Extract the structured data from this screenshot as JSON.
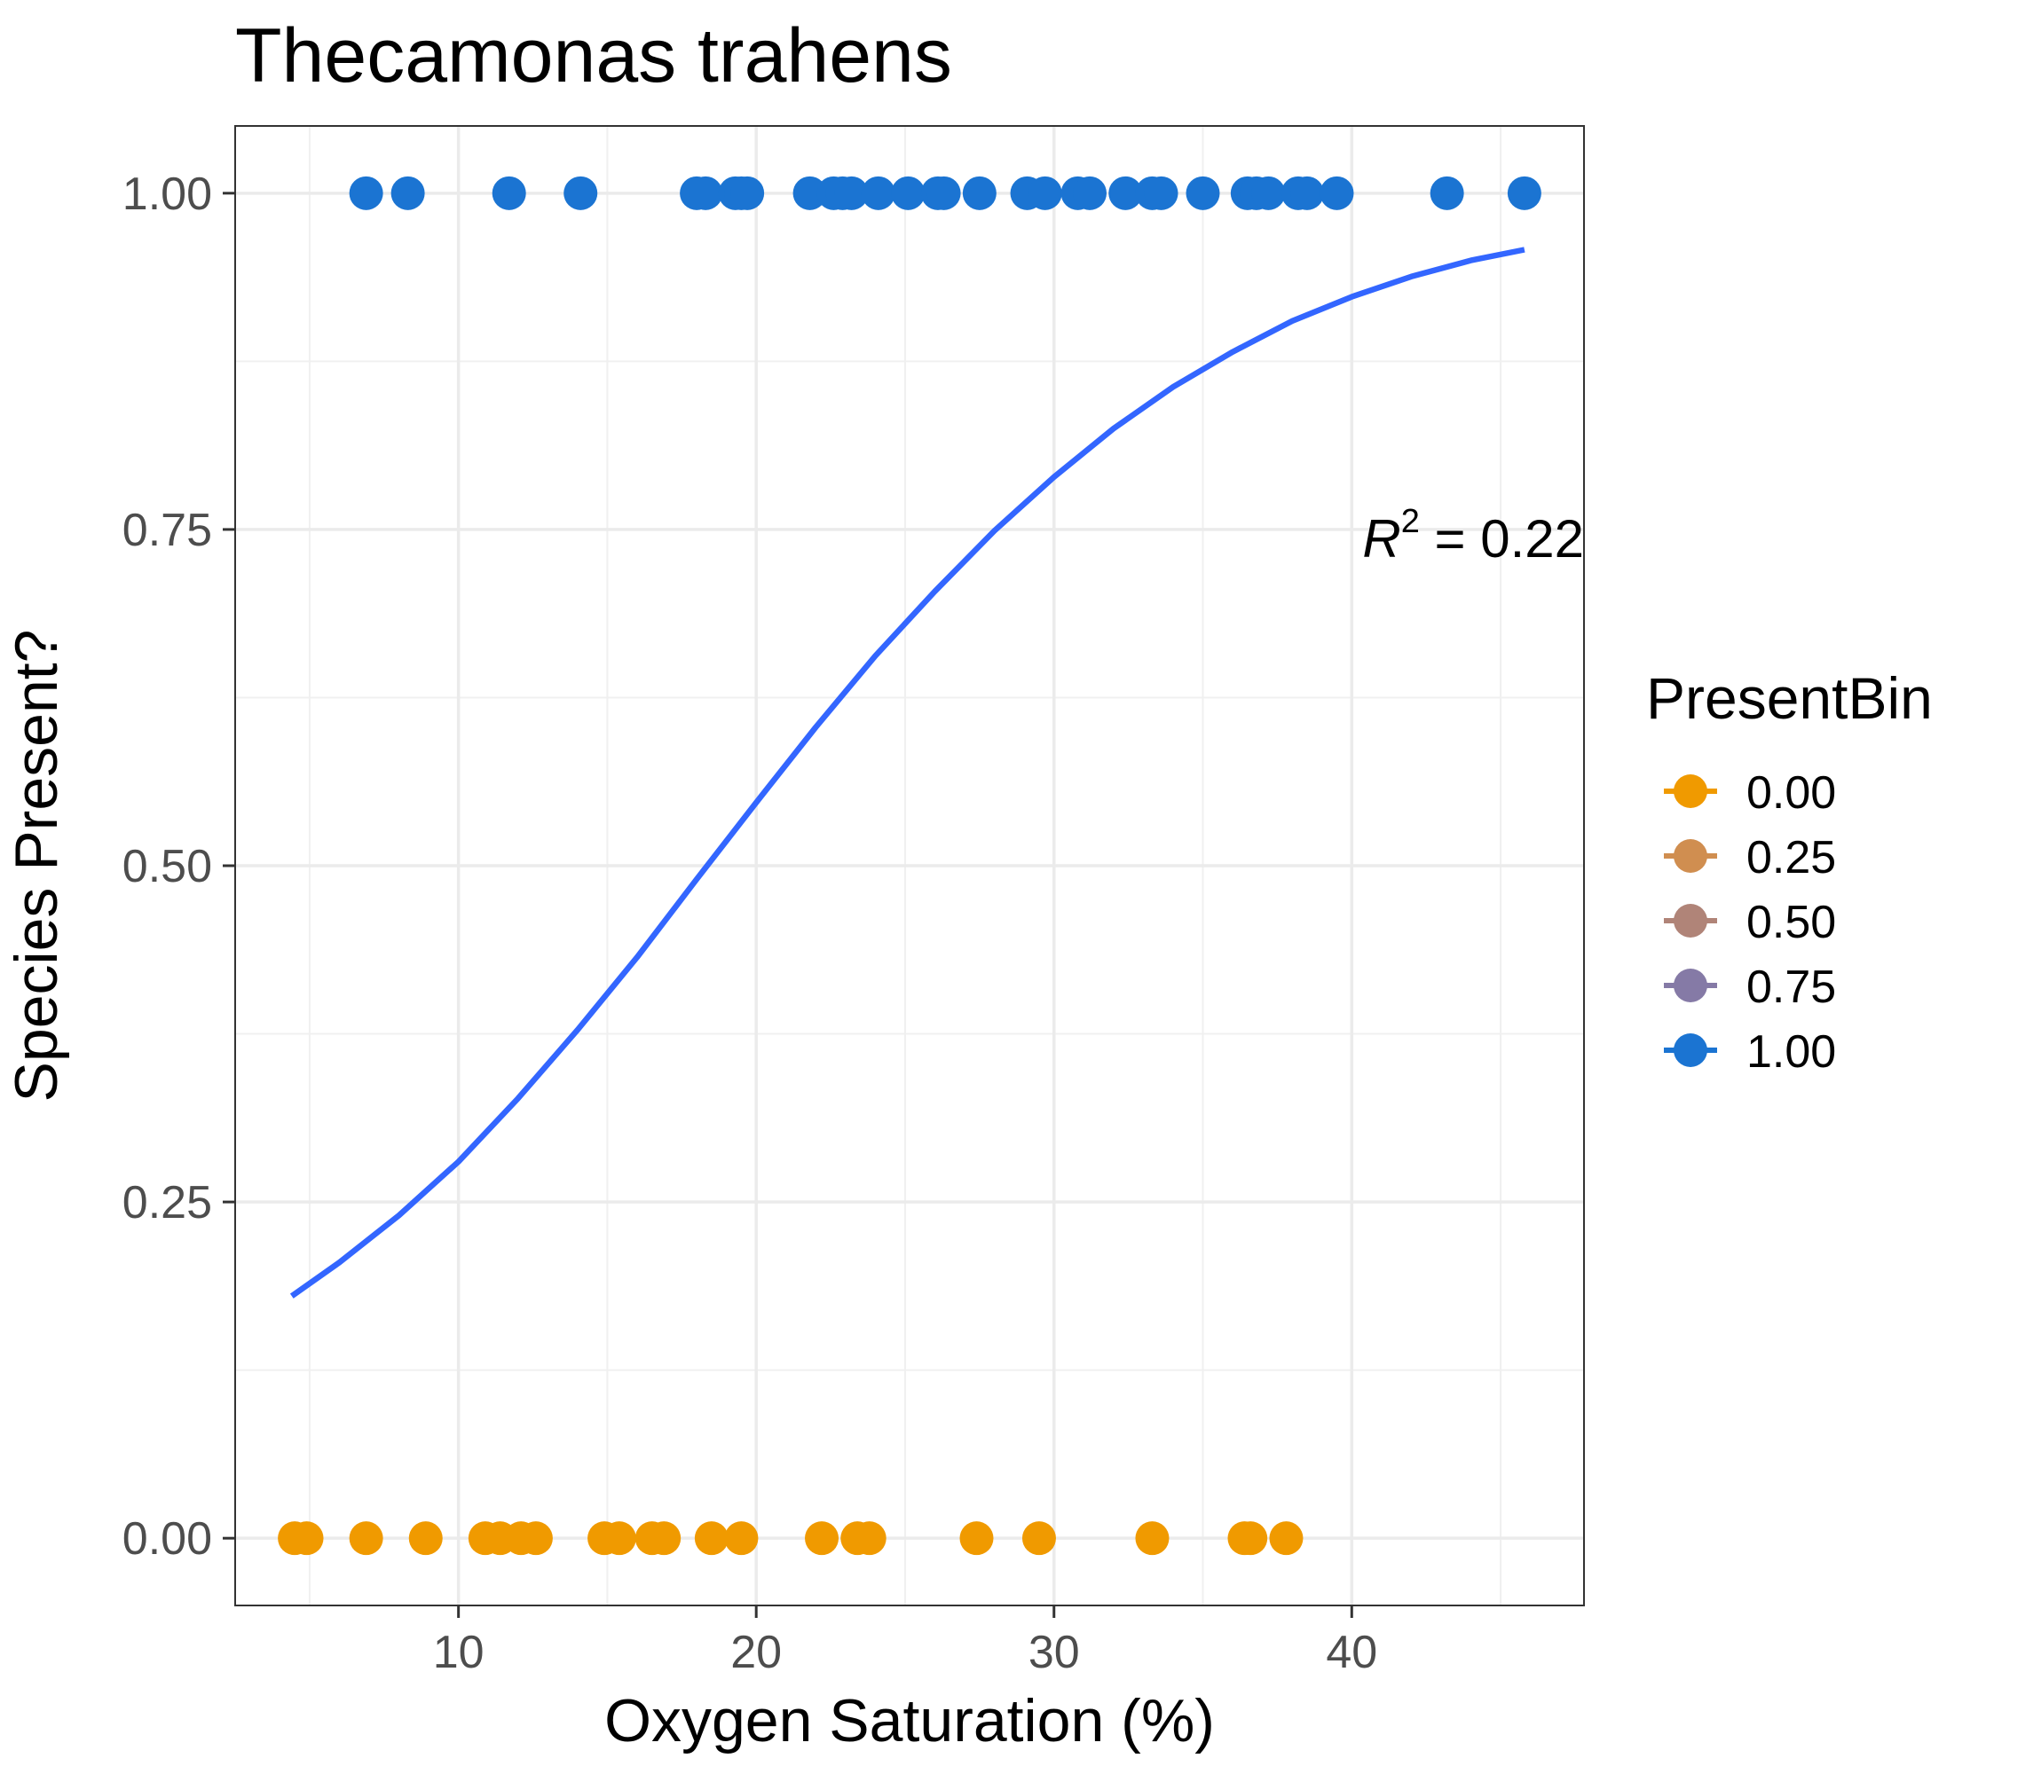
{
  "chart_data": {
    "type": "scatter",
    "title": "Thecamonas trahens",
    "xlabel": "Oxygen Saturation (%)",
    "ylabel": "Species Present?",
    "xlim": [
      2.5,
      47.8
    ],
    "ylim": [
      -0.05,
      1.05
    ],
    "x_ticks": [
      10,
      20,
      30,
      40
    ],
    "x_tick_labels": [
      "10",
      "20",
      "30",
      "40"
    ],
    "y_ticks": [
      0,
      0.25,
      0.5,
      0.75,
      1.0
    ],
    "y_tick_labels": [
      "0.00",
      "0.25",
      "0.50",
      "0.75",
      "1.00"
    ],
    "grid": true,
    "legend": {
      "title": "PresentBin",
      "position": "right",
      "items": [
        {
          "label": "0.00",
          "color": "#F09A00"
        },
        {
          "label": "0.25",
          "color": "#D08E50"
        },
        {
          "label": "0.50",
          "color": "#B08478"
        },
        {
          "label": "0.75",
          "color": "#857AA6"
        },
        {
          "label": "1.00",
          "color": "#1B74D2"
        }
      ]
    },
    "annotation": {
      "symbol": "R",
      "superscript": "2",
      "text": " = 0.22"
    },
    "series": [
      {
        "y": 1,
        "color": "#1B74D2",
        "x": [
          6.9,
          8.3,
          11.7,
          14.1,
          18.0,
          18.3,
          19.3,
          19.5,
          19.7,
          21.8,
          22.6,
          22.9,
          23.2,
          24.1,
          25.1,
          26.1,
          26.3,
          27.5,
          29.1,
          29.7,
          30.8,
          31.2,
          32.4,
          33.3,
          33.6,
          35.0,
          36.5,
          36.8,
          37.2,
          38.2,
          38.5,
          39.5,
          43.2,
          45.8
        ]
      },
      {
        "y": 0,
        "color": "#F09A00",
        "x": [
          4.5,
          4.9,
          6.9,
          8.9,
          10.9,
          11.4,
          12.1,
          12.6,
          14.9,
          15.4,
          16.5,
          16.9,
          18.5,
          19.5,
          22.2,
          23.4,
          23.8,
          27.4,
          29.5,
          33.3,
          36.4,
          36.6,
          37.8
        ]
      }
    ],
    "fit": {
      "type": "logistic",
      "color": "#3366FF",
      "x": [
        4.4,
        6,
        8,
        10,
        12,
        14,
        16,
        18,
        20,
        22,
        24,
        26,
        28,
        30,
        32,
        34,
        36,
        38,
        40,
        42,
        44,
        45.8
      ],
      "y": [
        0.18,
        0.205,
        0.24,
        0.28,
        0.327,
        0.378,
        0.432,
        0.49,
        0.547,
        0.603,
        0.656,
        0.704,
        0.749,
        0.789,
        0.825,
        0.856,
        0.882,
        0.905,
        0.923,
        0.938,
        0.95,
        0.958
      ]
    }
  }
}
